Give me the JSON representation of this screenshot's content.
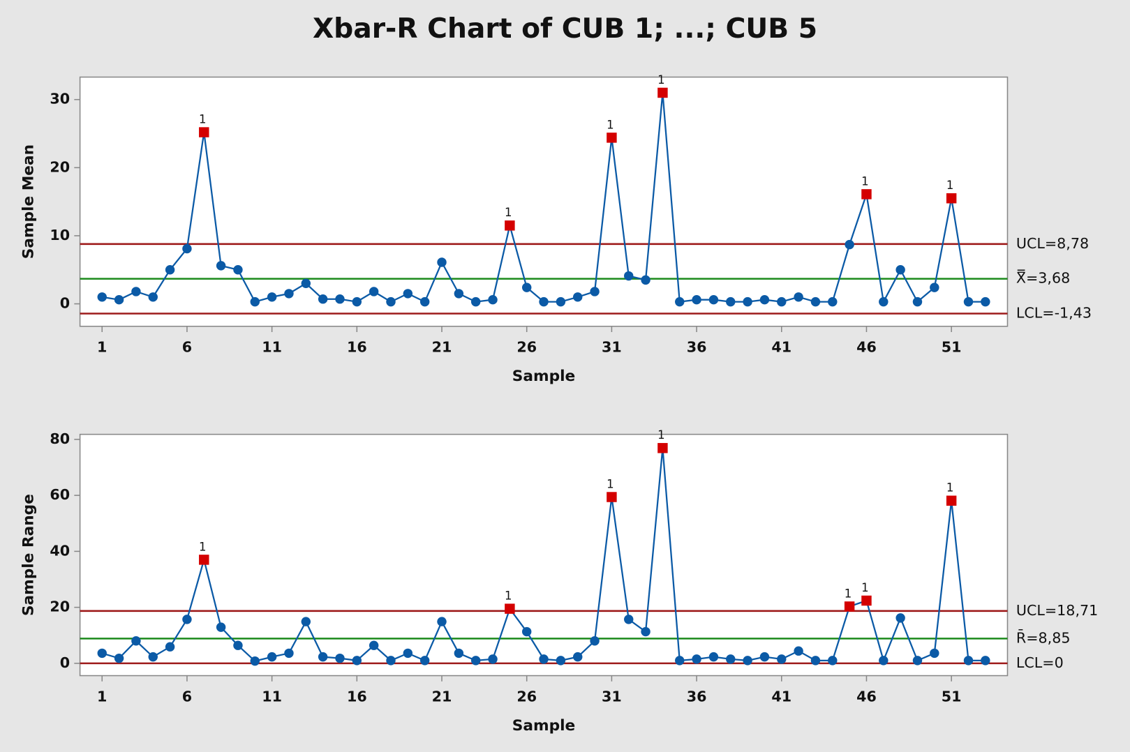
{
  "title": "Xbar-R Chart of CUB 1; ...; CUB 5",
  "chart_data": [
    {
      "type": "line",
      "xlabel": "Sample",
      "ylabel": "Sample Mean",
      "x": [
        1,
        2,
        3,
        4,
        5,
        6,
        7,
        8,
        9,
        10,
        11,
        12,
        13,
        14,
        15,
        16,
        17,
        18,
        19,
        20,
        21,
        22,
        23,
        24,
        25,
        26,
        27,
        28,
        29,
        30,
        31,
        32,
        33,
        34,
        35,
        36,
        37,
        38,
        39,
        40,
        41,
        42,
        43,
        44,
        45,
        46,
        47,
        48,
        49,
        50,
        51,
        52,
        53
      ],
      "values": [
        1.0,
        0.6,
        1.8,
        1.0,
        5.0,
        8.1,
        25.2,
        5.6,
        5.0,
        0.3,
        1.0,
        1.5,
        3.0,
        0.7,
        0.7,
        0.3,
        1.8,
        0.3,
        1.5,
        0.3,
        6.1,
        1.5,
        0.3,
        0.6,
        11.5,
        2.4,
        0.3,
        0.3,
        1.0,
        1.8,
        24.4,
        4.1,
        3.5,
        31.0,
        0.3,
        0.6,
        0.6,
        0.3,
        0.3,
        0.6,
        0.3,
        1.0,
        0.3,
        0.3,
        8.7,
        16.1,
        0.3,
        5.0,
        0.3,
        2.4,
        15.5,
        0.3,
        0.3
      ],
      "color": "#0b5aa6",
      "flag_color": "#d40000",
      "flags": [
        {
          "sample": 7,
          "label": "1"
        },
        {
          "sample": 25,
          "label": "1"
        },
        {
          "sample": 31,
          "label": "1"
        },
        {
          "sample": 34,
          "label": "1"
        },
        {
          "sample": 46,
          "label": "1"
        },
        {
          "sample": 51,
          "label": "1"
        }
      ],
      "control_lines": [
        {
          "value": 8.78,
          "label": "UCL=8,78",
          "color": "#9e1b1b"
        },
        {
          "value": 3.68,
          "label": "X̿=3,68",
          "color": "#1b8a1b"
        },
        {
          "value": -1.43,
          "label": "LCL=-1,43",
          "color": "#9e1b1b"
        }
      ],
      "xlim": [
        -0.3,
        54.3
      ],
      "xticks": [
        1,
        6,
        11,
        16,
        21,
        26,
        31,
        36,
        41,
        46,
        51
      ],
      "ylim": [
        -3.3,
        33.3
      ],
      "yticks": [
        0,
        10,
        20,
        30
      ]
    },
    {
      "type": "line",
      "xlabel": "Sample",
      "ylabel": "Sample Range",
      "x": [
        1,
        2,
        3,
        4,
        5,
        6,
        7,
        8,
        9,
        10,
        11,
        12,
        13,
        14,
        15,
        16,
        17,
        18,
        19,
        20,
        21,
        22,
        23,
        24,
        25,
        26,
        27,
        28,
        29,
        30,
        31,
        32,
        33,
        34,
        35,
        36,
        37,
        38,
        39,
        40,
        41,
        42,
        43,
        44,
        45,
        46,
        47,
        48,
        49,
        50,
        51,
        52,
        53
      ],
      "values": [
        3.6,
        1.8,
        8.0,
        2.3,
        5.9,
        15.7,
        37.0,
        12.9,
        6.4,
        0.8,
        2.3,
        3.6,
        14.9,
        2.3,
        1.8,
        1.0,
        6.4,
        1.0,
        3.6,
        1.0,
        14.9,
        3.6,
        1.0,
        1.5,
        19.5,
        11.3,
        1.5,
        1.0,
        2.3,
        8.0,
        59.4,
        15.7,
        11.3,
        76.9,
        1.0,
        1.5,
        2.3,
        1.5,
        1.0,
        2.3,
        1.5,
        4.4,
        1.0,
        1.0,
        20.3,
        22.4,
        1.0,
        16.2,
        1.0,
        3.6,
        58.1,
        1.0,
        1.0
      ],
      "color": "#0b5aa6",
      "flag_color": "#d40000",
      "flags": [
        {
          "sample": 7,
          "label": "1"
        },
        {
          "sample": 25,
          "label": "1"
        },
        {
          "sample": 31,
          "label": "1"
        },
        {
          "sample": 34,
          "label": "1"
        },
        {
          "sample": 45,
          "label": "1"
        },
        {
          "sample": 46,
          "label": "1"
        },
        {
          "sample": 51,
          "label": "1"
        }
      ],
      "control_lines": [
        {
          "value": 18.71,
          "label": "UCL=18,71",
          "color": "#9e1b1b"
        },
        {
          "value": 8.85,
          "label": "R̄=8,85",
          "color": "#1b8a1b"
        },
        {
          "value": 0,
          "label": "LCL=0",
          "color": "#9e1b1b"
        }
      ],
      "xlim": [
        -0.3,
        54.3
      ],
      "xticks": [
        1,
        6,
        11,
        16,
        21,
        26,
        31,
        36,
        41,
        46,
        51
      ],
      "ylim": [
        -4.4,
        81.8
      ],
      "yticks": [
        0,
        20,
        40,
        60,
        80
      ]
    }
  ]
}
